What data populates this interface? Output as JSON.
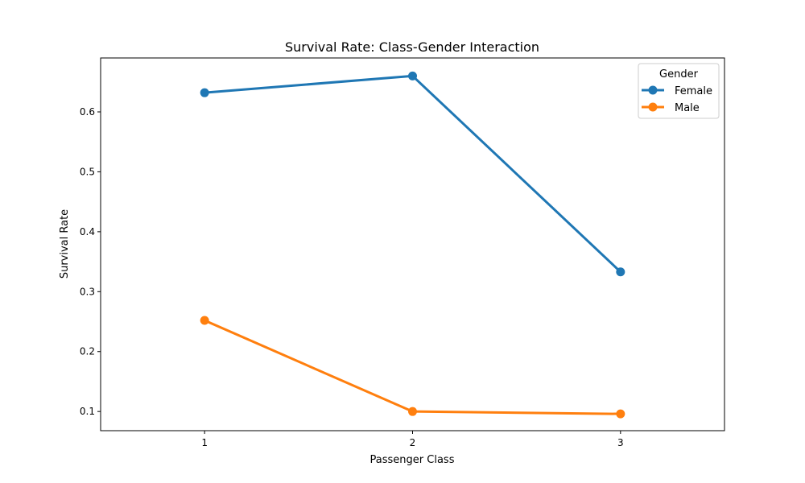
{
  "chart_data": {
    "type": "line",
    "title": "Survival Rate: Class-Gender Interaction",
    "xlabel": "Passenger Class",
    "ylabel": "Survival Rate",
    "categories": [
      "1",
      "2",
      "3"
    ],
    "x_padding": 0.5,
    "ylim": [
      0.068,
      0.69
    ],
    "yticks": [
      0.1,
      0.2,
      0.3,
      0.4,
      0.5,
      0.6
    ],
    "ytick_labels": [
      "0.1",
      "0.2",
      "0.3",
      "0.4",
      "0.5",
      "0.6"
    ],
    "grid": false,
    "legend": {
      "title": "Gender",
      "placement": "top-right"
    },
    "series": [
      {
        "name": "Female",
        "color": "#1f77b4",
        "values": [
          0.632,
          0.66,
          0.333
        ]
      },
      {
        "name": "Male",
        "color": "#ff7f0e",
        "values": [
          0.252,
          0.1,
          0.096
        ]
      }
    ]
  }
}
